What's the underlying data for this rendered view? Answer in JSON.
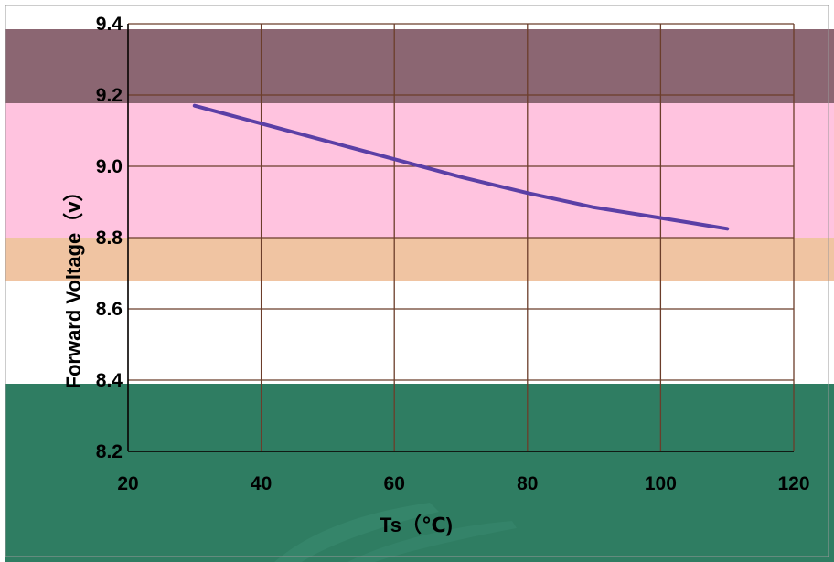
{
  "chart_data": {
    "type": "line",
    "title": "",
    "xlabel": "Ts（℃)",
    "ylabel": "Forward Voltage（v）",
    "xlim": [
      20,
      120
    ],
    "ylim": [
      8.2,
      9.4
    ],
    "x_ticks": [
      "20",
      "40",
      "60",
      "80",
      "100",
      "120"
    ],
    "y_ticks": [
      "8.2",
      "8.4",
      "8.6",
      "8.8",
      "9.0",
      "9.2",
      "9.4"
    ],
    "grid": true,
    "legend": "none",
    "series": [
      {
        "color": "#5b3fa6",
        "x": [
          30,
          40,
          50,
          60,
          70,
          80,
          90,
          100,
          110
        ],
        "y": [
          9.17,
          9.12,
          9.07,
          9.02,
          8.97,
          8.925,
          8.885,
          8.855,
          8.825
        ]
      }
    ]
  },
  "colors": {
    "band_maroon": "#8b6672",
    "band_pink": "#ffc3df",
    "band_tan": "#f0c4a2",
    "band_green": "#2f7d62",
    "grid": "#6b3d2a",
    "axis": "#000000"
  }
}
